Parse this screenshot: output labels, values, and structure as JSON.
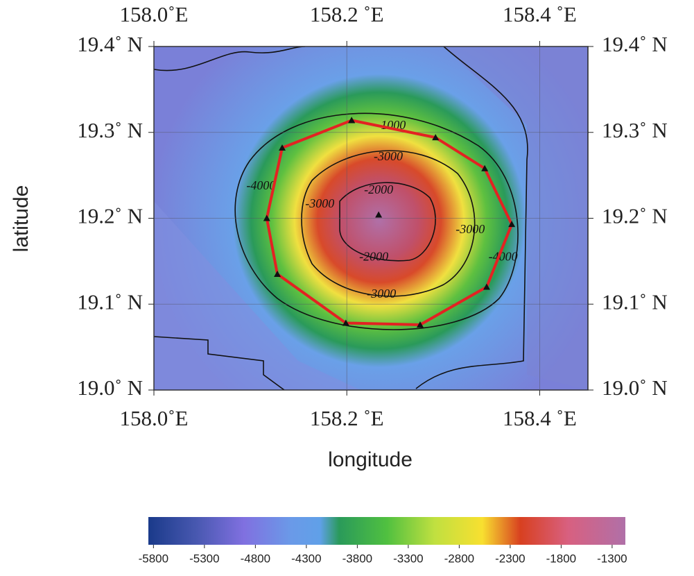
{
  "chart_data": {
    "type": "map",
    "xlabel": "longitude",
    "ylabel": "latitude",
    "xlim": [
      158.0,
      158.45
    ],
    "ylim": [
      19.0,
      19.4
    ],
    "xticks": [
      {
        "value": 158.0,
        "label": "158.0˚E"
      },
      {
        "value": 158.2,
        "label": "158.2 ˚E"
      },
      {
        "value": 158.4,
        "label": "158.4 ˚E"
      }
    ],
    "yticks": [
      {
        "value": 19.0,
        "label": "19.0˚ N"
      },
      {
        "value": 19.1,
        "label": "19.1˚ N"
      },
      {
        "value": 19.2,
        "label": "19.2˚ N"
      },
      {
        "value": 19.3,
        "label": "19.3˚ N"
      },
      {
        "value": 19.4,
        "label": "19.4˚ N"
      }
    ],
    "grid": true,
    "series": [
      {
        "type": "line",
        "color": "#e32222",
        "x": [
          158.205,
          158.292,
          158.343,
          158.371,
          158.345,
          158.276,
          158.199,
          158.128,
          158.117,
          158.133,
          158.205
        ],
        "y": [
          19.314,
          19.294,
          19.258,
          19.193,
          19.12,
          19.076,
          19.078,
          19.135,
          19.2,
          19.282,
          19.314
        ]
      },
      {
        "type": "scatter",
        "color": "#111111",
        "x": [
          158.233
        ],
        "y": [
          19.204
        ]
      }
    ],
    "annotations": [
      {
        "text": "-1000",
        "x": 158.246,
        "y": 19.307
      },
      {
        "text": "-3000",
        "x": 158.243,
        "y": 19.271
      },
      {
        "text": "-2000",
        "x": 158.233,
        "y": 19.232
      },
      {
        "text": "-3000",
        "x": 158.172,
        "y": 19.216
      },
      {
        "text": "-4000",
        "x": 158.111,
        "y": 19.237
      },
      {
        "text": "-2000",
        "x": 158.228,
        "y": 19.154
      },
      {
        "text": "-3000",
        "x": 158.236,
        "y": 19.111
      },
      {
        "text": "-3000",
        "x": 158.328,
        "y": 19.186
      },
      {
        "text": "-4000",
        "x": 158.362,
        "y": 19.154
      }
    ],
    "colorbar": {
      "clim": [
        -5850,
        -1170
      ],
      "ticks": [
        -5800,
        -5300,
        -4800,
        -4300,
        -3800,
        -3300,
        -2800,
        -2300,
        -1800,
        -1300
      ]
    }
  }
}
